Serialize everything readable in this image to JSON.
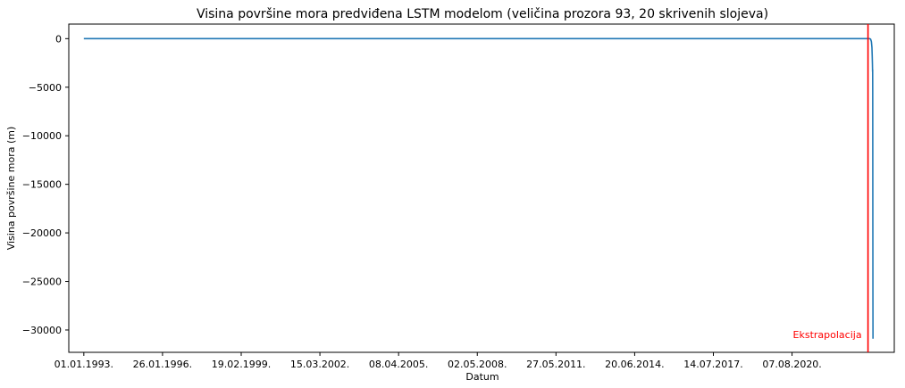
{
  "chart_data": {
    "type": "line",
    "title": "Visina površine mora predviđena LSTM modelom (veličina prozora 93, 20 skrivenih slojeva)",
    "xlabel": "Datum",
    "ylabel": "Visina površine mora (m)",
    "x_range": [
      "1992-06-01",
      "2024-08-01"
    ],
    "ylim": [
      -32300,
      1500
    ],
    "x_ticks": [
      {
        "date": "1993-01-01",
        "label": "01.01.1993."
      },
      {
        "date": "1996-01-26",
        "label": "26.01.1996."
      },
      {
        "date": "1999-02-19",
        "label": "19.02.1999."
      },
      {
        "date": "2002-03-15",
        "label": "15.03.2002."
      },
      {
        "date": "2005-04-08",
        "label": "08.04.2005."
      },
      {
        "date": "2008-05-02",
        "label": "02.05.2008."
      },
      {
        "date": "2011-05-27",
        "label": "27.05.2011."
      },
      {
        "date": "2014-06-20",
        "label": "20.06.2014."
      },
      {
        "date": "2017-07-14",
        "label": "14.07.2017."
      },
      {
        "date": "2020-08-07",
        "label": "07.08.2020."
      }
    ],
    "y_ticks": [
      {
        "value": 0,
        "label": "0"
      },
      {
        "value": -5000,
        "label": "−5000"
      },
      {
        "value": -10000,
        "label": "−10000"
      },
      {
        "value": -15000,
        "label": "−15000"
      },
      {
        "value": -20000,
        "label": "−20000"
      },
      {
        "value": -25000,
        "label": "−25000"
      },
      {
        "value": -30000,
        "label": "−30000"
      }
    ],
    "grid": false,
    "series": [
      {
        "color": "#1f77b4",
        "points": [
          {
            "x": "1993-01-01",
            "y": 0
          },
          {
            "x": "2023-08-15",
            "y": 0
          },
          {
            "x": "2023-08-30",
            "y": -50
          },
          {
            "x": "2023-09-10",
            "y": -300
          },
          {
            "x": "2023-09-18",
            "y": -900
          },
          {
            "x": "2023-09-22",
            "y": -1800
          },
          {
            "x": "2023-09-25",
            "y": -2600
          },
          {
            "x": "2023-09-27",
            "y": -3400
          },
          {
            "x": "2023-09-28",
            "y": -3200
          },
          {
            "x": "2023-09-29",
            "y": -5500
          },
          {
            "x": "2023-09-30",
            "y": -12000
          },
          {
            "x": "2023-10-01",
            "y": -20000
          },
          {
            "x": "2023-10-02",
            "y": -27000
          },
          {
            "x": "2023-10-03",
            "y": -30900
          }
        ]
      }
    ],
    "vertical_line": {
      "date": "2023-07-24",
      "color": "#ff0000"
    },
    "annotation": {
      "text": "Ekstrapolacija",
      "color": "#ff0000"
    }
  }
}
